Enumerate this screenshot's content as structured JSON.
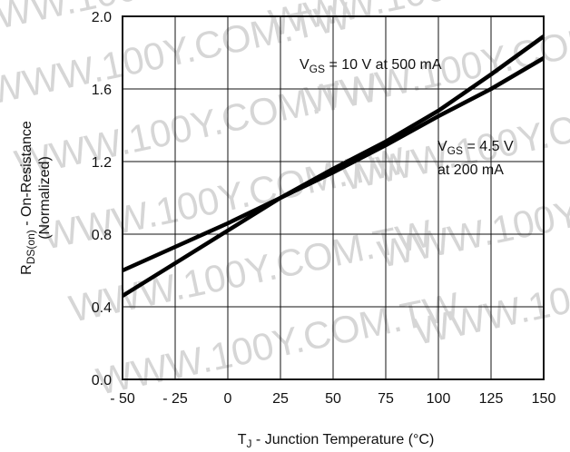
{
  "watermark": "WWW.100Y.COM.TW",
  "chart_data": {
    "type": "line",
    "xlim": [
      -50,
      150
    ],
    "ylim": [
      0.0,
      2.0
    ],
    "x_ticks": [
      "- 50",
      "- 25",
      "0",
      "25",
      "50",
      "75",
      "100",
      "125",
      "150"
    ],
    "y_ticks": [
      "0.0",
      "0.4",
      "0.8",
      "1.2",
      "1.6",
      "2.0"
    ],
    "grid": true,
    "xlabel": {
      "main": "T",
      "sub": "J",
      "rest": " - Junction Temperature (°C)"
    },
    "ylabel": {
      "main": "R",
      "sub": "DS(on)",
      "rest": " - On-Resistance",
      "line2": "(Normalized)"
    },
    "series": [
      {
        "name": "V_GS = 10 V at 500 mA",
        "label": {
          "main": "V",
          "sub": "GS",
          "rest": " = 10 V at 500 mA"
        },
        "x": [
          -50,
          -25,
          0,
          25,
          50,
          75,
          100,
          125,
          150
        ],
        "y": [
          0.46,
          0.64,
          0.82,
          1.0,
          1.16,
          1.31,
          1.48,
          1.68,
          1.89
        ]
      },
      {
        "name": "V_GS = 4.5 V at 200 mA",
        "label": {
          "main": "V",
          "sub": "GS",
          "rest": " = 4.5 V",
          "line2": "at 200 mA"
        },
        "x": [
          -50,
          -25,
          0,
          25,
          50,
          75,
          100,
          125,
          150
        ],
        "y": [
          0.6,
          0.73,
          0.86,
          1.0,
          1.14,
          1.29,
          1.45,
          1.6,
          1.77
        ]
      }
    ]
  }
}
